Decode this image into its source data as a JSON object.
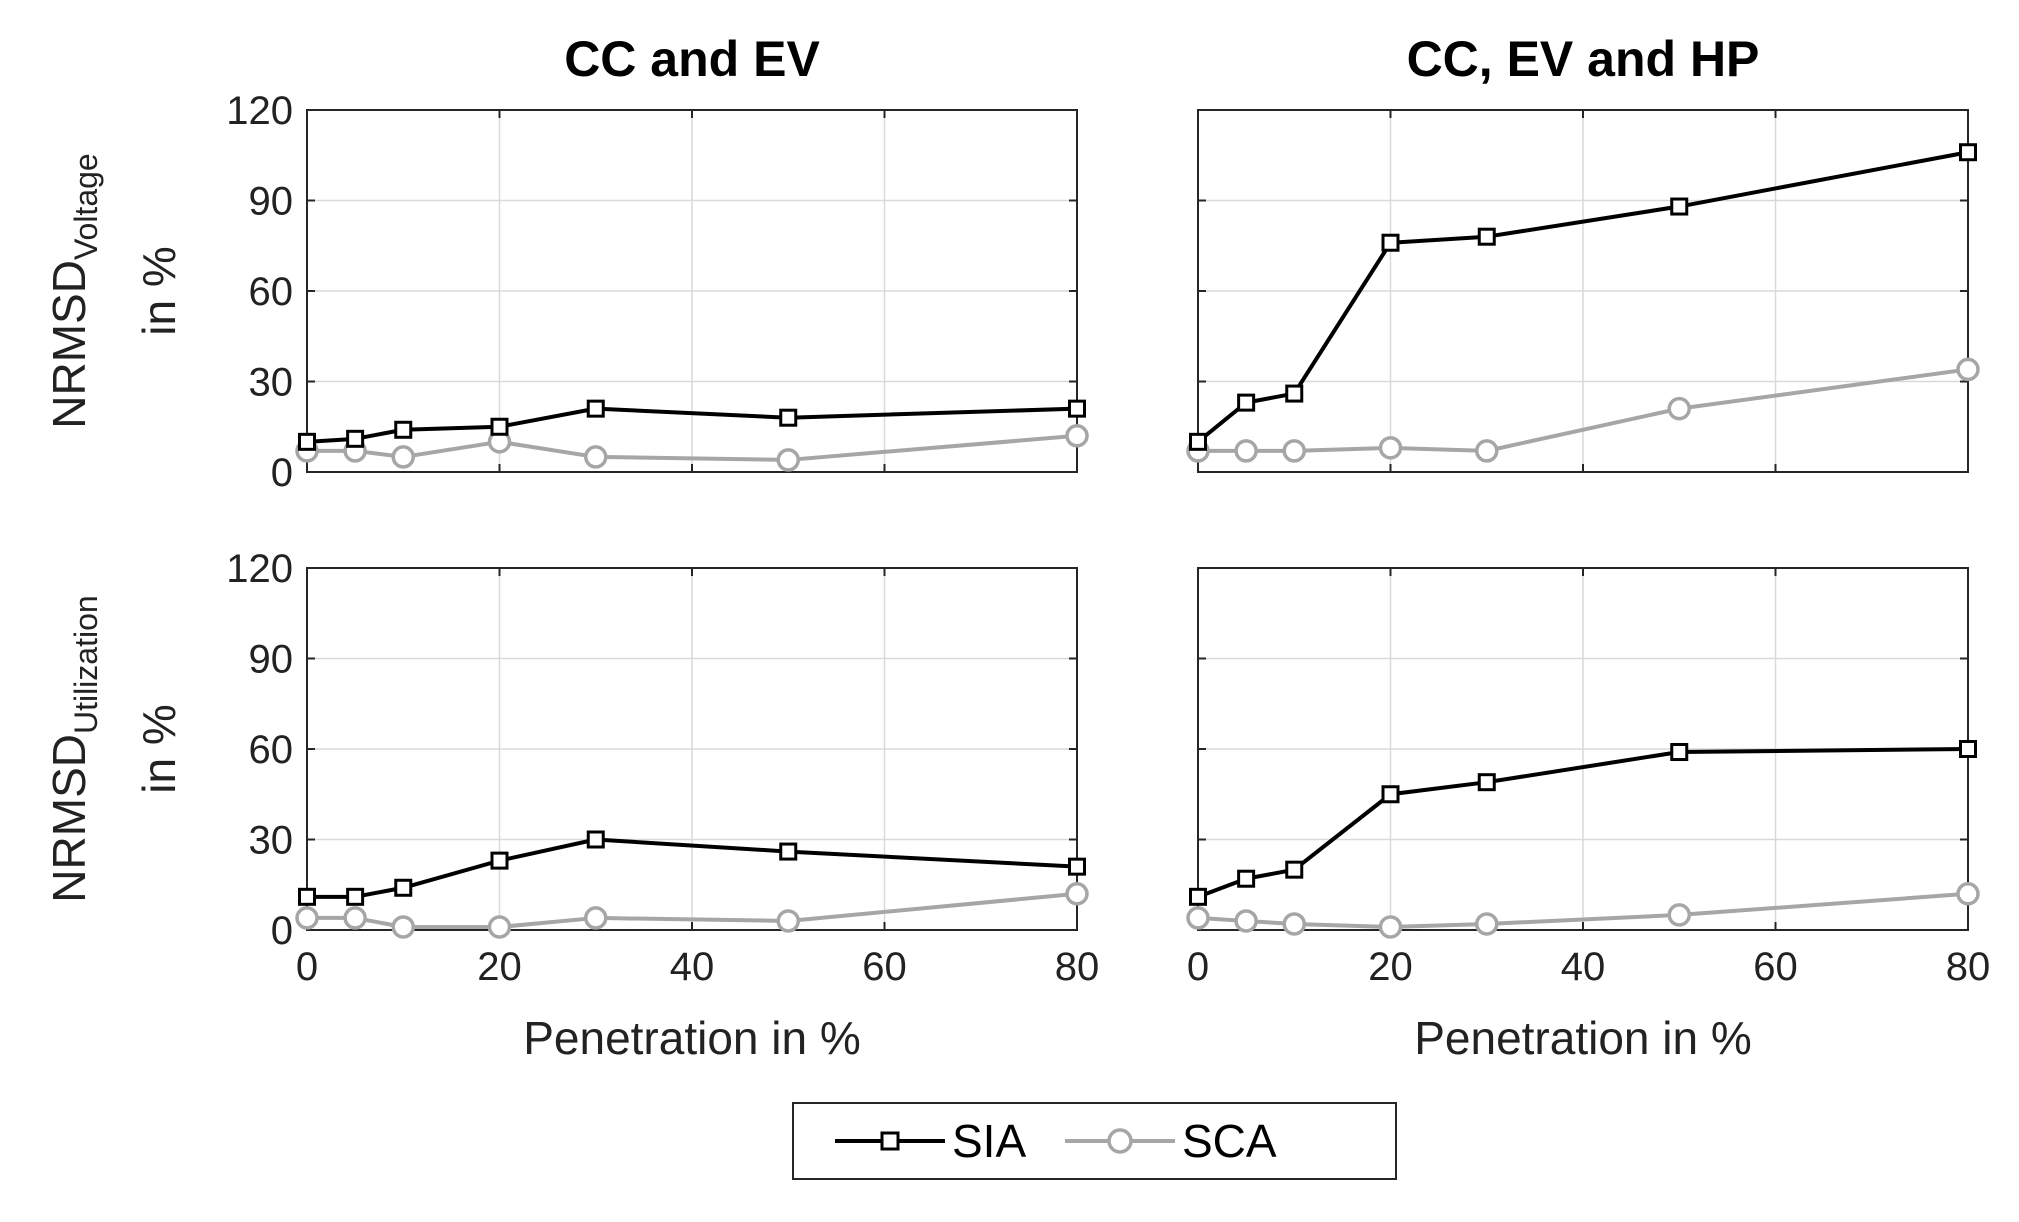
{
  "colors": {
    "SIA": "#000000",
    "SCA": "#a6a6a6"
  },
  "legend": [
    {
      "label": "SIA",
      "marker": "square"
    },
    {
      "label": "SCA",
      "marker": "circle"
    }
  ],
  "chart_data": [
    {
      "type": "line",
      "title": "CC and EV",
      "ylabel_main": "NRMSD",
      "ylabel_sub": "Voltage",
      "ylabel_line2": "in %",
      "xlabel": "",
      "xlim": [
        0,
        80
      ],
      "ylim": [
        0,
        120
      ],
      "xticks": [
        0,
        20,
        40,
        60,
        80
      ],
      "yticks": [
        0,
        30,
        60,
        90,
        120
      ],
      "x": [
        0,
        5,
        10,
        20,
        30,
        50,
        80
      ],
      "series": [
        {
          "name": "SIA",
          "values": [
            10,
            11,
            14,
            15,
            21,
            18,
            21
          ]
        },
        {
          "name": "SCA",
          "values": [
            7,
            7,
            5,
            10,
            5,
            4,
            12
          ]
        }
      ]
    },
    {
      "type": "line",
      "title": "CC, EV and HP",
      "ylabel_main": "",
      "ylabel_sub": "",
      "ylabel_line2": "",
      "xlabel": "",
      "xlim": [
        0,
        80
      ],
      "ylim": [
        0,
        120
      ],
      "xticks": [
        0,
        20,
        40,
        60,
        80
      ],
      "yticks": [
        0,
        30,
        60,
        90,
        120
      ],
      "x": [
        0,
        5,
        10,
        20,
        30,
        50,
        80
      ],
      "series": [
        {
          "name": "SIA",
          "values": [
            10,
            23,
            26,
            76,
            78,
            88,
            106
          ]
        },
        {
          "name": "SCA",
          "values": [
            7,
            7,
            7,
            8,
            7,
            21,
            34
          ]
        }
      ]
    },
    {
      "type": "line",
      "title": "",
      "ylabel_main": "NRMSD",
      "ylabel_sub": "Utilization",
      "ylabel_line2": "in %",
      "xlabel": "Penetration in %",
      "xlim": [
        0,
        80
      ],
      "ylim": [
        0,
        120
      ],
      "xticks": [
        0,
        20,
        40,
        60,
        80
      ],
      "yticks": [
        0,
        30,
        60,
        90,
        120
      ],
      "x": [
        0,
        5,
        10,
        20,
        30,
        50,
        80
      ],
      "series": [
        {
          "name": "SIA",
          "values": [
            11,
            11,
            14,
            23,
            30,
            26,
            21
          ]
        },
        {
          "name": "SCA",
          "values": [
            4,
            4,
            1,
            1,
            4,
            3,
            12
          ]
        }
      ]
    },
    {
      "type": "line",
      "title": "",
      "ylabel_main": "",
      "ylabel_sub": "",
      "ylabel_line2": "",
      "xlabel": "Penetration in %",
      "xlim": [
        0,
        80
      ],
      "ylim": [
        0,
        120
      ],
      "xticks": [
        0,
        20,
        40,
        60,
        80
      ],
      "yticks": [
        0,
        30,
        60,
        90,
        120
      ],
      "x": [
        0,
        5,
        10,
        20,
        30,
        50,
        80
      ],
      "series": [
        {
          "name": "SIA",
          "values": [
            11,
            17,
            20,
            45,
            49,
            59,
            60
          ]
        },
        {
          "name": "SCA",
          "values": [
            4,
            3,
            2,
            1,
            2,
            5,
            12
          ]
        }
      ]
    }
  ]
}
